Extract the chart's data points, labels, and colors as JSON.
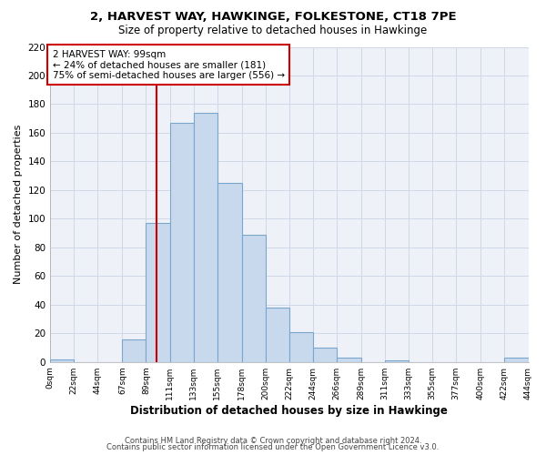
{
  "title": "2, HARVEST WAY, HAWKINGE, FOLKESTONE, CT18 7PE",
  "subtitle": "Size of property relative to detached houses in Hawkinge",
  "xlabel": "Distribution of detached houses by size in Hawkinge",
  "ylabel": "Number of detached properties",
  "bar_color": "#c8d9ee",
  "bar_edge_color": "#7aa6cc",
  "annotation_box_color": "#ffffff",
  "annotation_box_edge": "#cc0000",
  "vline_color": "#cc0000",
  "vline_x": 99,
  "annotation_line1": "2 HARVEST WAY: 99sqm",
  "annotation_line2": "← 24% of detached houses are smaller (181)",
  "annotation_line3": "75% of semi-detached houses are larger (556) →",
  "footer1": "Contains HM Land Registry data © Crown copyright and database right 2024.",
  "footer2": "Contains public sector information licensed under the Open Government Licence v3.0.",
  "tick_labels": [
    "0sqm",
    "22sqm",
    "44sqm",
    "67sqm",
    "89sqm",
    "111sqm",
    "133sqm",
    "155sqm",
    "178sqm",
    "200sqm",
    "222sqm",
    "244sqm",
    "266sqm",
    "289sqm",
    "311sqm",
    "333sqm",
    "355sqm",
    "377sqm",
    "400sqm",
    "422sqm",
    "444sqm"
  ],
  "bin_edges": [
    0,
    22,
    44,
    67,
    89,
    111,
    133,
    155,
    178,
    200,
    222,
    244,
    266,
    289,
    311,
    333,
    355,
    377,
    400,
    422,
    444
  ],
  "bar_heights": [
    2,
    0,
    0,
    16,
    97,
    167,
    174,
    125,
    89,
    38,
    21,
    10,
    3,
    0,
    1,
    0,
    0,
    0,
    0,
    3
  ],
  "ylim": [
    0,
    220
  ],
  "yticks": [
    0,
    20,
    40,
    60,
    80,
    100,
    120,
    140,
    160,
    180,
    200,
    220
  ],
  "grid_color": "#d0d8e8",
  "background_color": "#ffffff",
  "plot_bg_color": "#eef2f8"
}
